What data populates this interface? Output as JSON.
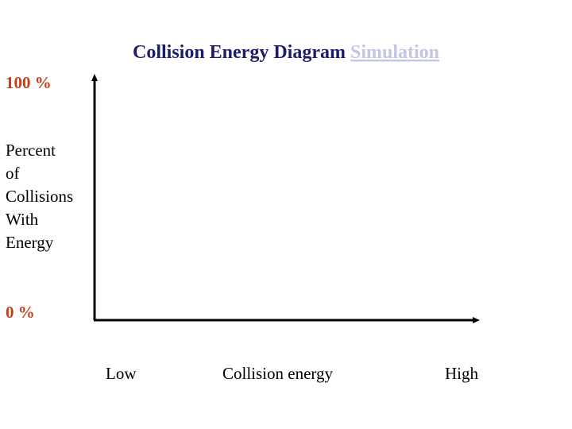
{
  "title": {
    "text": "Collision Energy Diagram",
    "link": "Simulation"
  },
  "y_axis": {
    "top_label": "100 %",
    "bottom_label": "0 %",
    "title_lines": [
      "Percent",
      "of",
      "Collisions",
      "With",
      "Energy"
    ]
  },
  "x_axis": {
    "low": "Low",
    "title": "Collision energy",
    "high": "High"
  }
}
